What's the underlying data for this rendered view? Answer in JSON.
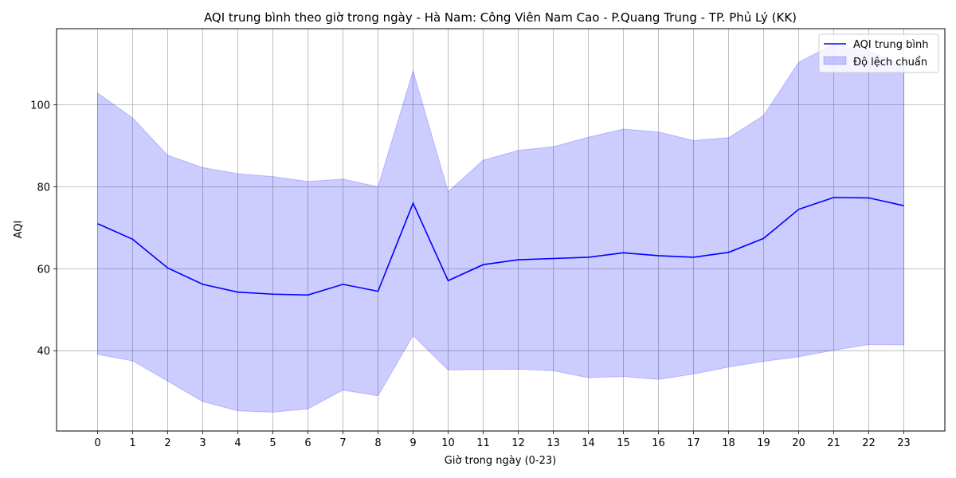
{
  "chart_data": {
    "type": "line",
    "title": "AQI trung bình theo giờ trong ngày - Hà Nam: Công Viên Nam Cao - P.Quang Trung - TP. Phủ Lý (KK)",
    "xlabel": "Giờ trong ngày (0-23)",
    "ylabel": "AQI",
    "x": [
      0,
      1,
      2,
      3,
      4,
      5,
      6,
      7,
      8,
      9,
      10,
      11,
      12,
      13,
      14,
      15,
      16,
      17,
      18,
      19,
      20,
      21,
      22,
      23
    ],
    "xticks": [
      "0",
      "1",
      "2",
      "3",
      "4",
      "5",
      "6",
      "7",
      "8",
      "9",
      "10",
      "11",
      "12",
      "13",
      "14",
      "15",
      "16",
      "17",
      "18",
      "19",
      "20",
      "21",
      "22",
      "23"
    ],
    "yticks": [
      40,
      60,
      80,
      100
    ],
    "ytick_labels": [
      "40",
      "60",
      "80",
      "100"
    ],
    "xlim": [
      -1.17,
      24.17
    ],
    "ylim": [
      20.4,
      118.6
    ],
    "grid": true,
    "legend_position": "top-right",
    "series": [
      {
        "name": "AQI trung bình",
        "kind": "line",
        "color": "#0000ff",
        "values": [
          71.0,
          67.2,
          60.2,
          56.2,
          54.3,
          53.8,
          53.6,
          56.2,
          54.5,
          76.0,
          57.1,
          61.0,
          62.2,
          62.5,
          62.8,
          63.9,
          63.2,
          62.8,
          64.0,
          67.4,
          74.5,
          77.4,
          77.3,
          75.4
        ]
      },
      {
        "name": "Độ lệch chuẩn",
        "kind": "band",
        "color": "#0000ff",
        "upper": [
          102.9,
          96.8,
          87.7,
          84.7,
          83.2,
          82.5,
          81.3,
          81.9,
          80.0,
          108.3,
          78.8,
          86.5,
          88.9,
          89.8,
          92.1,
          94.1,
          93.4,
          91.3,
          92.0,
          97.4,
          110.4,
          114.8,
          113.2,
          109.5
        ],
        "lower": [
          39.1,
          37.5,
          32.6,
          27.6,
          25.3,
          25.0,
          25.8,
          30.4,
          29.0,
          43.7,
          35.3,
          35.4,
          35.5,
          35.1,
          33.4,
          33.7,
          33.0,
          34.3,
          36.0,
          37.4,
          38.5,
          40.1,
          41.5,
          41.4
        ]
      }
    ]
  }
}
